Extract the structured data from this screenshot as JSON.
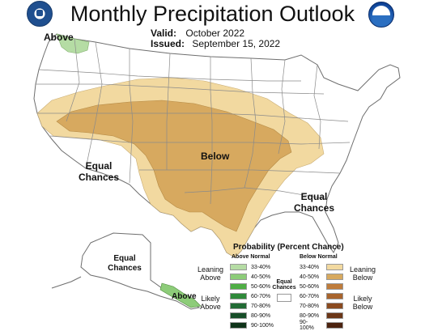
{
  "header": {
    "title": "Monthly Precipitation Outlook",
    "valid_label": "Valid:",
    "valid_value": "October 2022",
    "issued_label": "Issued:",
    "issued_value": "September 15, 2022"
  },
  "logos": {
    "left": "dept-of-commerce-seal-icon",
    "right": "noaa-logo-icon",
    "noaa_text": "noaa"
  },
  "map_labels": {
    "above_nw": "Above",
    "below_center": "Below",
    "equal_west_1": "Equal",
    "equal_west_2": "Chances",
    "equal_east_1": "Equal",
    "equal_east_2": "Chances",
    "equal_alaska_1": "Equal",
    "equal_alaska_2": "Chances",
    "above_alaska": "Above"
  },
  "legend": {
    "title": "Probability (Percent Chance)",
    "above_header": "Above Normal",
    "below_header": "Below Normal",
    "equal_label_1": "Equal",
    "equal_label_2": "Chances",
    "above_rows": [
      {
        "label": "33-40%",
        "color": "#b5dca4"
      },
      {
        "label": "40-50%",
        "color": "#8dcc79"
      },
      {
        "label": "50-60%",
        "color": "#4fae45"
      },
      {
        "label": "60-70%",
        "color": "#2f8a3a"
      },
      {
        "label": "70-80%",
        "color": "#216b34"
      },
      {
        "label": "80-90%",
        "color": "#174e28"
      },
      {
        "label": "90-100%",
        "color": "#0e3319"
      }
    ],
    "below_rows": [
      {
        "label": "33-40%",
        "color": "#f2d9a0"
      },
      {
        "label": "40-50%",
        "color": "#d7a95f"
      },
      {
        "label": "50-60%",
        "color": "#bf7c3c"
      },
      {
        "label": "60-70%",
        "color": "#a8642d"
      },
      {
        "label": "70-80%",
        "color": "#8a4a1f"
      },
      {
        "label": "80-90%",
        "color": "#6b3617"
      },
      {
        "label": "90-100%",
        "color": "#4c230f"
      }
    ],
    "side_labels": {
      "leaning_above_1": "Leaning",
      "leaning_above_2": "Above",
      "likely_above_1": "Likely",
      "likely_above_2": "Above",
      "leaning_below_1": "Leaning",
      "leaning_below_2": "Below",
      "likely_below_1": "Likely",
      "likely_below_2": "Below"
    }
  },
  "colors": {
    "below_33_40": "#f2d9a0",
    "below_40_50": "#d7a95f",
    "above_33_40": "#b5dca4",
    "state_lines": "#8a8a8a"
  }
}
